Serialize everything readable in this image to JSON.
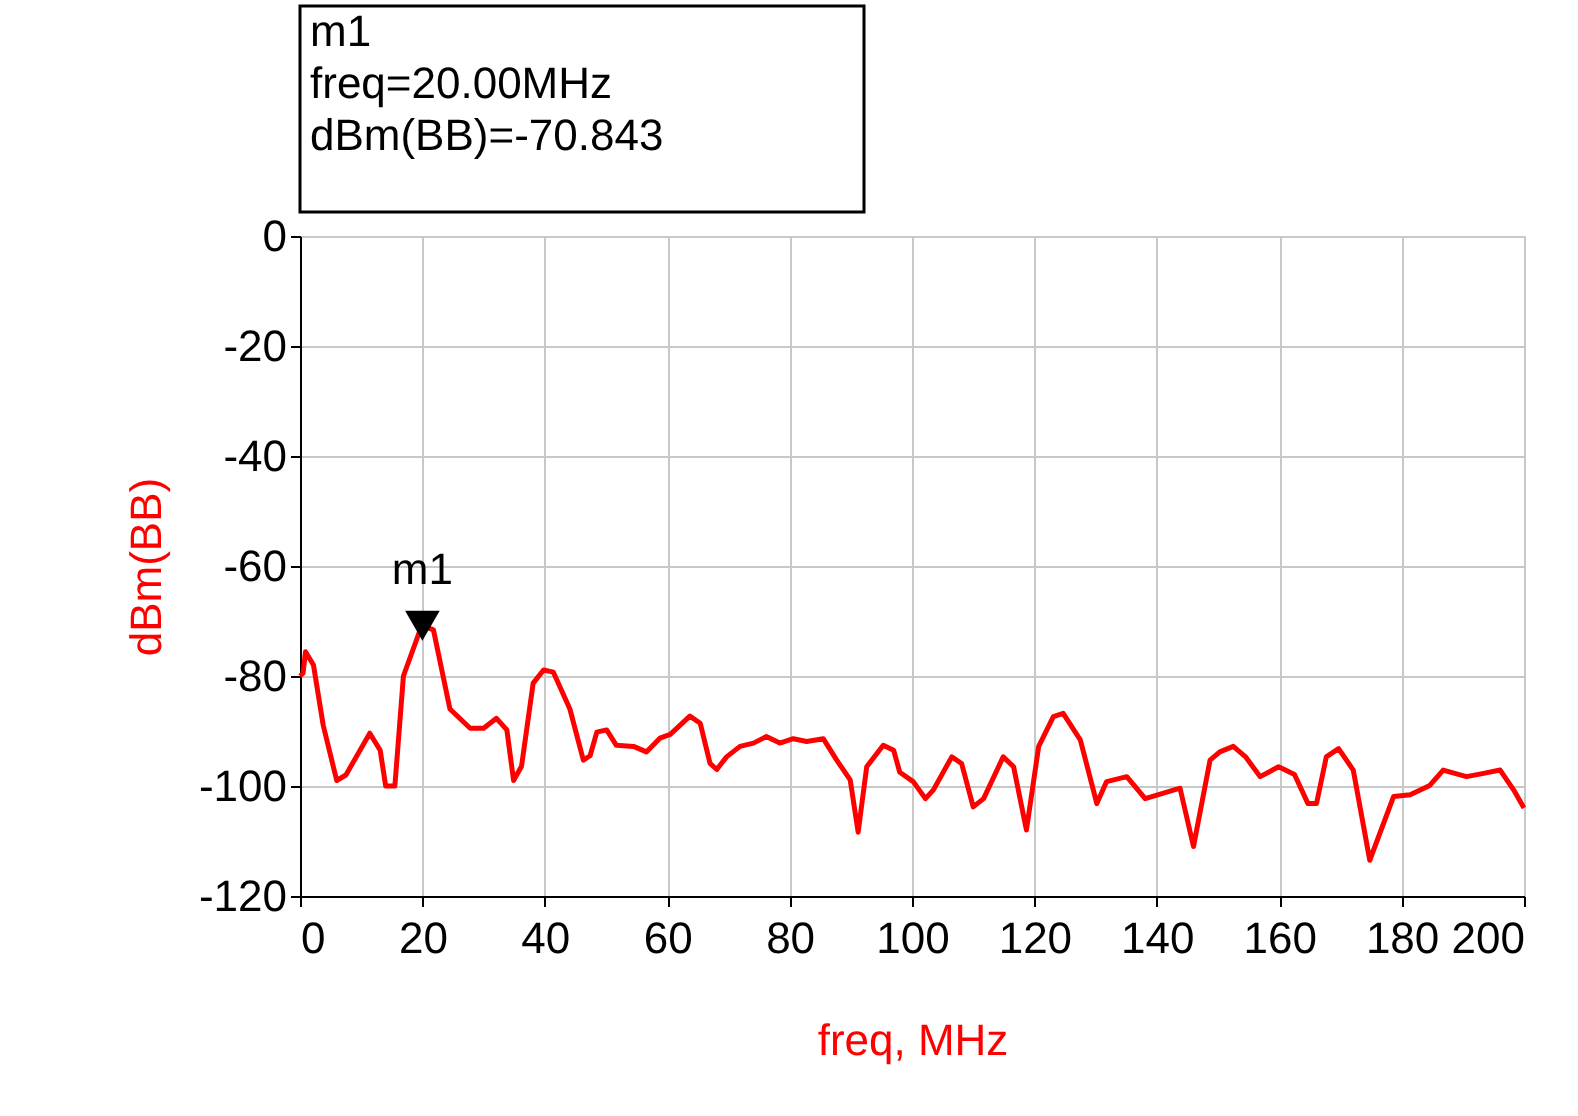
{
  "chart_data": {
    "type": "line",
    "xlabel": "freq, MHz",
    "ylabel": "dBm(BB)",
    "x": [
      0,
      0.5,
      0.9,
      2.2,
      3.8,
      6,
      7.5,
      11.4,
      13.1,
      14,
      15.5,
      16.9,
      19.9,
      21.8,
      24.5,
      27.8,
      30,
      32.1,
      33.8,
      34.9,
      36.2,
      38.1,
      39.8,
      41.4,
      44.1,
      46.3,
      47.4,
      48.5,
      50.1,
      51.7,
      54.5,
      56.6,
      58.8,
      60.5,
      63.7,
      65.4,
      67,
      68.1,
      69.7,
      71.9,
      74.1,
      76.2,
      78.4,
      80.6,
      82.8,
      85.5,
      87.7,
      89.9,
      91.2,
      92.6,
      95.3,
      97,
      98,
      100.2,
      102.2,
      103.5,
      106.5,
      108.1,
      110,
      111.7,
      114.9,
      116.6,
      118.7,
      120.7,
      123.1,
      124.7,
      127.5,
      130.2,
      131.8,
      135.1,
      138.1,
      141.1,
      143.8,
      146,
      148.7,
      150.3,
      152.5,
      154.5,
      156.9,
      159.9,
      162.5,
      164.7,
      166.1,
      167.7,
      169.7,
      172.1,
      174.8,
      178.7,
      181.4,
      184.6,
      186.8,
      190.6,
      193.4,
      196.1,
      198.3,
      200
    ],
    "series": [
      {
        "color": "#ff0000",
        "values": [
          -80,
          -79.5,
          -75.6,
          -78,
          -89,
          -99,
          -98,
          -90.4,
          -93.5,
          -100,
          -100,
          -80,
          -70.8,
          -71.6,
          -86,
          -89.5,
          -89.5,
          -87.7,
          -89.8,
          -99,
          -96.4,
          -81.3,
          -78.9,
          -79.3,
          -86,
          -95.3,
          -94.5,
          -90.2,
          -89.8,
          -92.6,
          -92.8,
          -93.8,
          -91.3,
          -90.6,
          -87.3,
          -88.6,
          -95.9,
          -97,
          -94.7,
          -92.8,
          -92.2,
          -91,
          -92.2,
          -91.4,
          -91.9,
          -91.4,
          -95.3,
          -98.9,
          -108.4,
          -96.5,
          -92.6,
          -93.5,
          -97.5,
          -99.2,
          -102.3,
          -100.7,
          -94.7,
          -95.9,
          -103.8,
          -102.3,
          -94.7,
          -96.5,
          -108,
          -92.8,
          -87.4,
          -86.8,
          -91.6,
          -103.2,
          -99.2,
          -98.3,
          -102.3,
          -101.3,
          -100.4,
          -111,
          -95.3,
          -93.8,
          -92.8,
          -94.7,
          -98.3,
          -96.5,
          -97.9,
          -103.2,
          -103.2,
          -94.7,
          -93.2,
          -97.1,
          -113.5,
          -101.9,
          -101.6,
          -99.9,
          -97.1,
          -98.3,
          -97.7,
          -97.1,
          -100.7,
          -104
        ]
      }
    ],
    "xlim": [
      0,
      200
    ],
    "xticks": [
      0,
      20,
      40,
      60,
      80,
      100,
      120,
      140,
      160,
      180,
      200
    ],
    "ylim": [
      -120,
      0
    ],
    "yticks": [
      -120,
      -100,
      -80,
      -60,
      -40,
      -20,
      0
    ],
    "grid": true,
    "line_style": "solid",
    "annotations": [
      {
        "text": "m1",
        "x": 20,
        "y": -70.843
      },
      "m1\nfreq=20.00MHz\ndBm(BB)=-70.843"
    ]
  }
}
